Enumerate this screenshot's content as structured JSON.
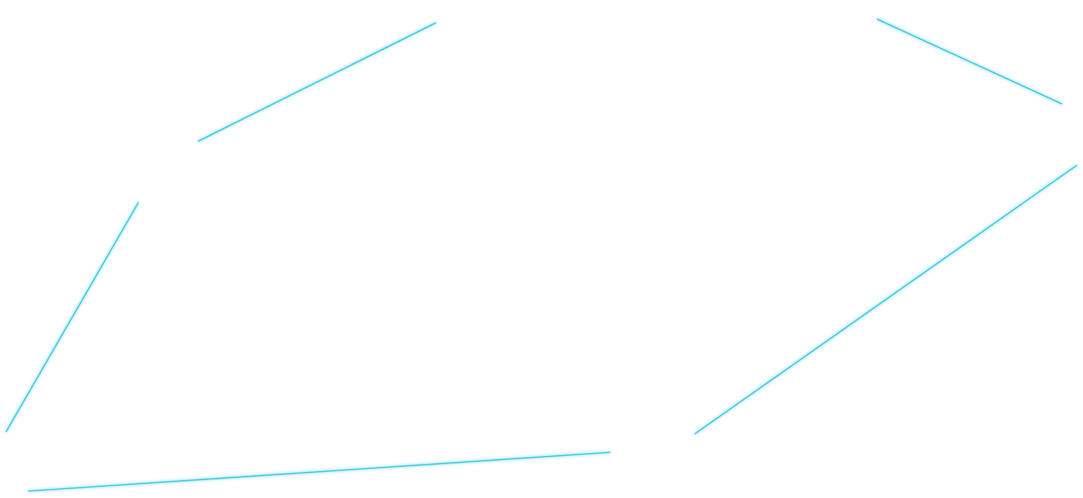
{
  "line_color": "#2ec4e0",
  "glow_color": "#b8f0fa"
}
